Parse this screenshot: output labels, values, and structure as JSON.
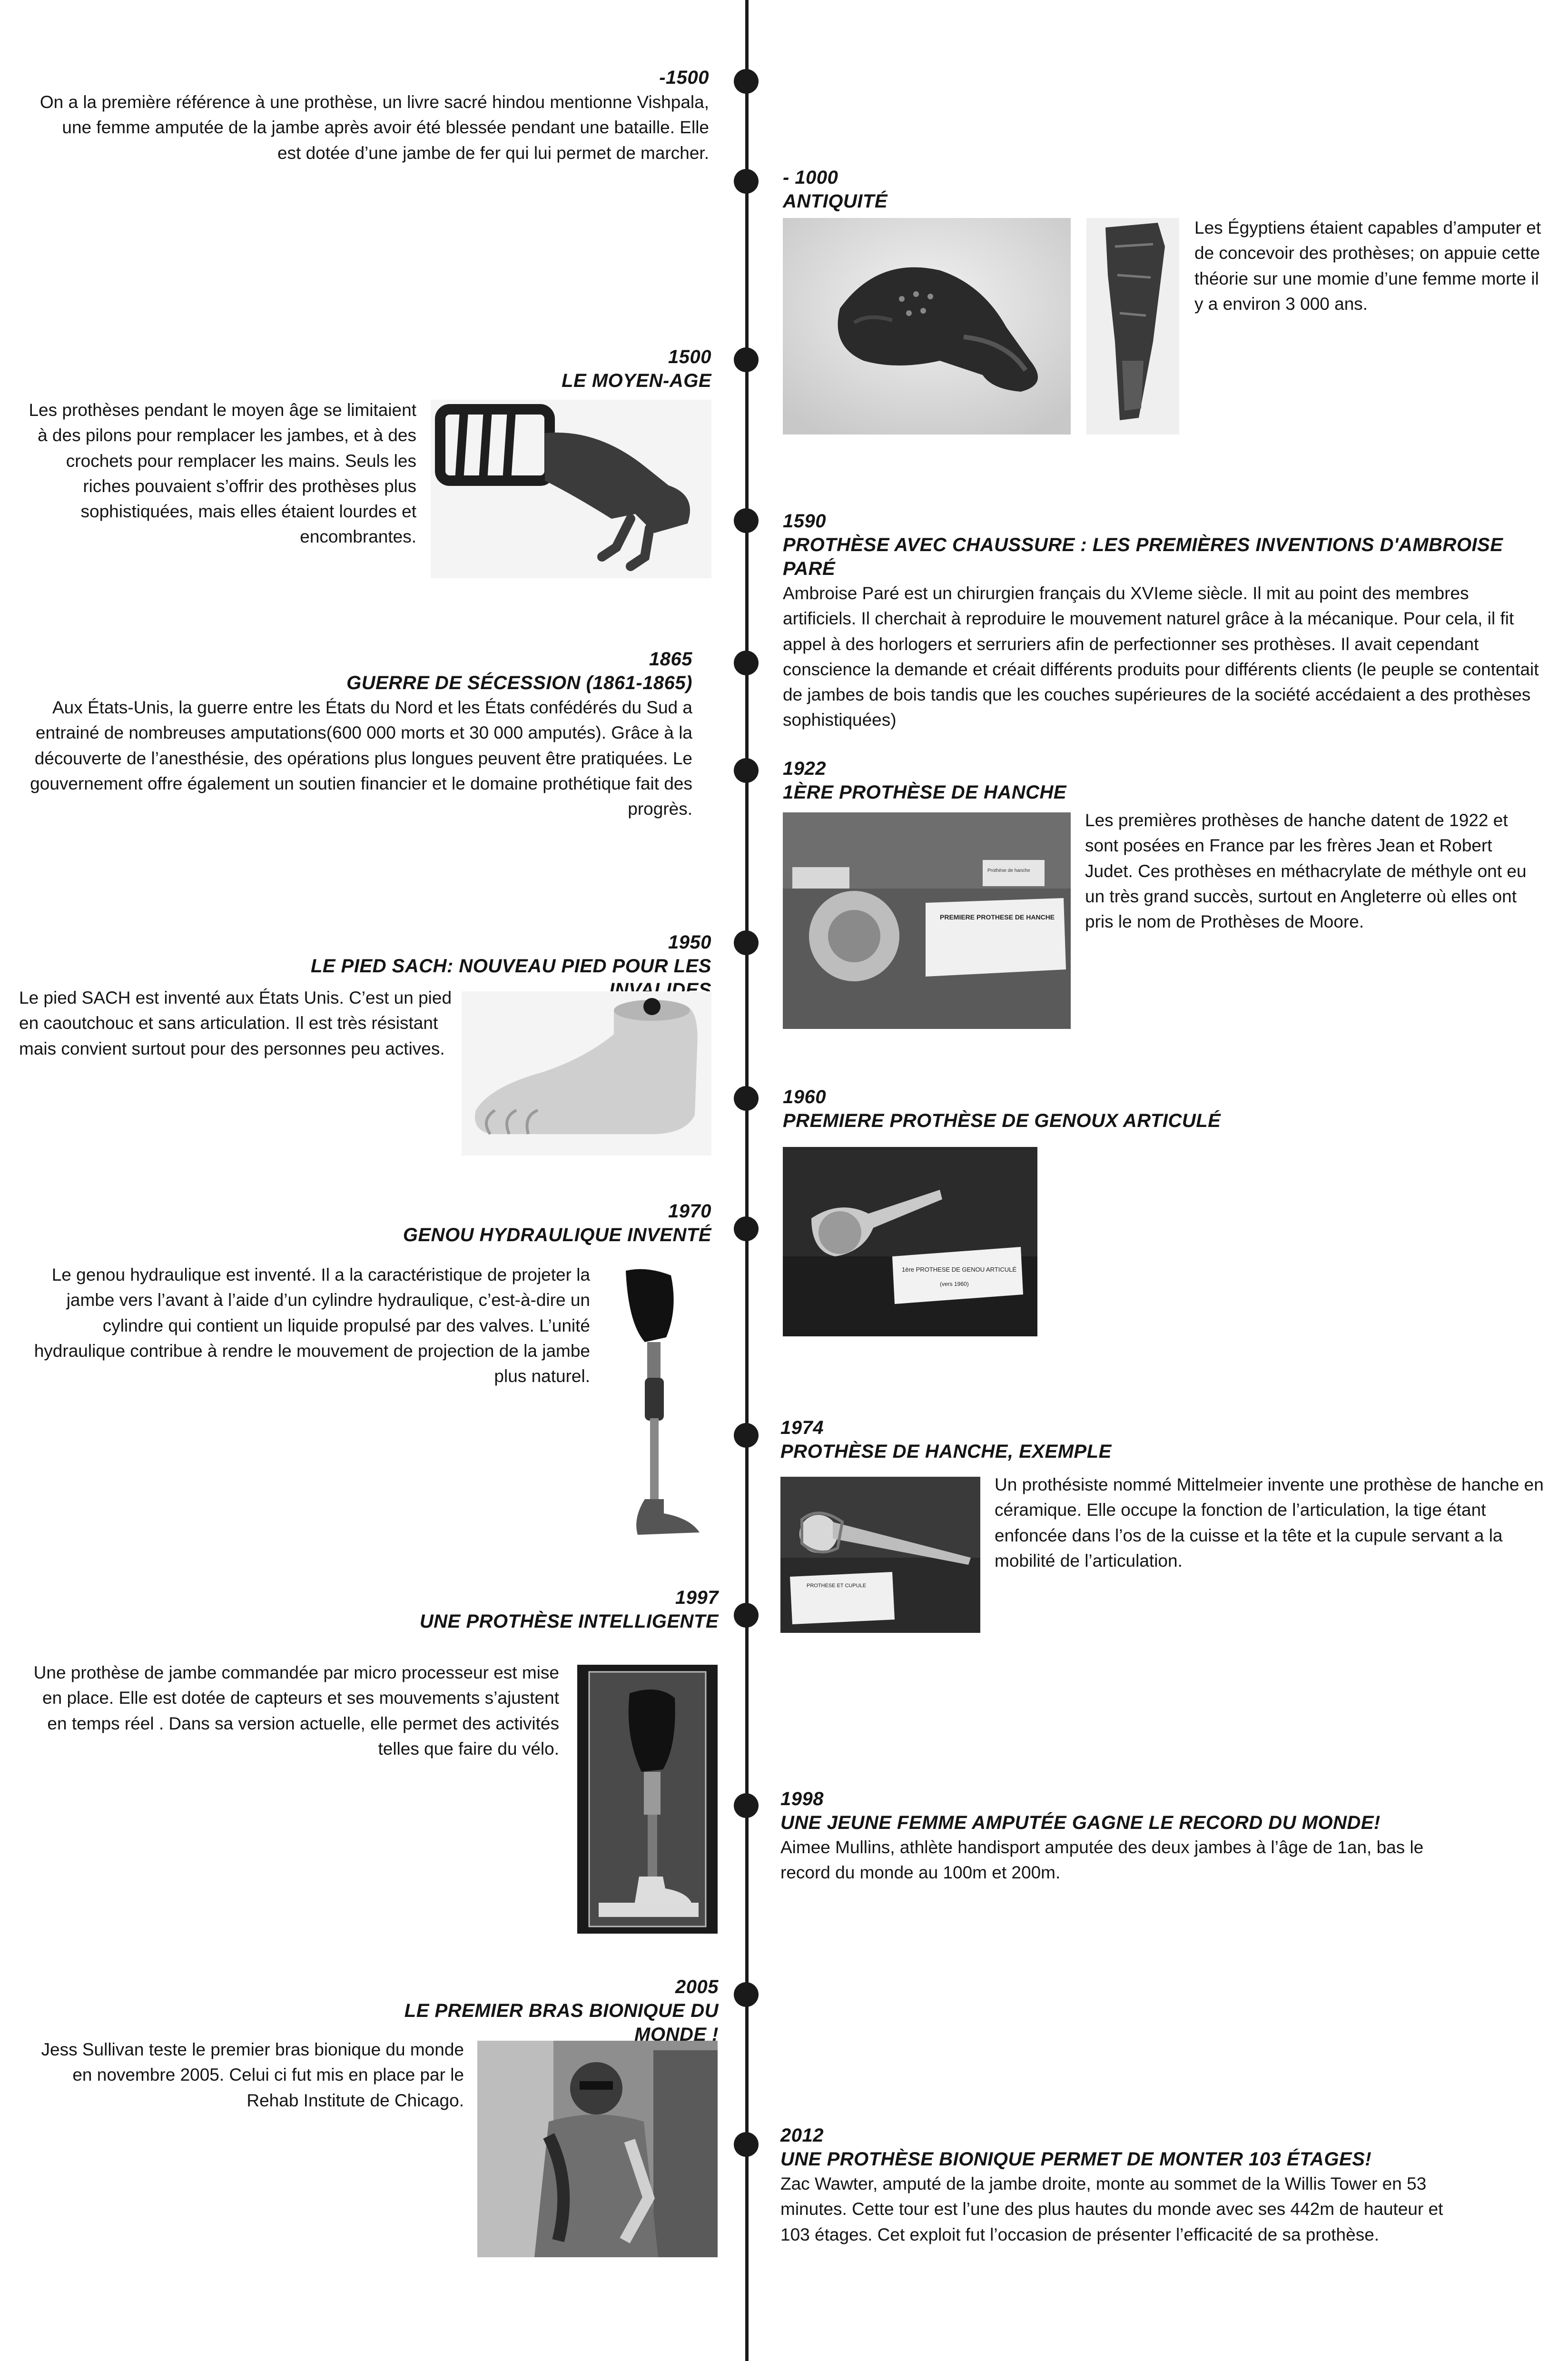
{
  "entries": [
    {
      "year": "-1500",
      "title": "",
      "text": "On a la première référence à une prothèse, un livre sacré hindou mentionne Vishpala, une femme amputée de la jambe après avoir été blessée pendant une bataille. Elle est dotée d’une jambe de fer qui lui permet de marcher."
    },
    {
      "year": "- 1000",
      "title": "ANTIQUITÉ",
      "text": "Les Égyptiens étaient capables d’amputer et de concevoir des prothèses; on appuie cette théorie sur une momie d’une femme morte il y a environ 3 000 ans."
    },
    {
      "year": "1500",
      "title": "LE MOYEN-AGE",
      "text": "Les prothèses pendant le moyen âge se limitaient à des pilons pour remplacer les jambes, et à des crochets pour remplacer les mains. Seuls les riches pouvaient s’offrir des prothèses plus sophistiquées, mais elles étaient lourdes et encombrantes."
    },
    {
      "year": "1590",
      "title": "PROTHÈSE AVEC CHAUSSURE : LES PREMIÈRES INVENTIONS D'AMBROISE PARÉ",
      "text": "Ambroise Paré est un chirurgien français du XVIeme siècle. Il mit au point des membres artificiels. Il cherchait à reproduire le mouvement naturel grâce à la mécanique. Pour cela, il fit appel à des horlogers et serruriers afin de perfectionner ses prothèses. Il avait cependant conscience la demande et créait différents produits pour différents clients (le peuple se contentait de jambes de bois tandis que les couches supérieures de la société accédaient a des prothèses sophistiquées)"
    },
    {
      "year": "1865",
      "title": "GUERRE DE SÉCESSION (1861-1865)",
      "text": "Aux États-Unis, la guerre entre les États du Nord et les États confédérés du Sud a entrainé de nombreuses amputations(600 000 morts et 30 000 amputés). Grâce à la découverte de l’anesthésie, des opérations plus longues peuvent être pratiquées. Le gouvernement offre également un soutien financier et le domaine prothétique fait des progrès."
    },
    {
      "year": "1922",
      "title": "1ÈRE PROTHÈSE DE HANCHE",
      "text": "Les premières prothèses de hanche datent de 1922 et sont posées en France par les frères Jean et Robert Judet. Ces prothèses en méthacrylate de méthyle ont eu un très grand succès, surtout en Angleterre où elles ont pris le nom de Prothèses de Moore."
    },
    {
      "year": "1950",
      "title": "LE PIED SACH: NOUVEAU PIED POUR LES INVALIDES",
      "text": "Le pied SACH est inventé aux États Unis. C’est un pied en caoutchouc et sans articulation. Il est très résistant mais convient surtout pour des personnes peu actives."
    },
    {
      "year": "1960",
      "title": "PREMIERE PROTHÈSE DE GENOUX ARTICULÉ",
      "text": ""
    },
    {
      "year": "1970",
      "title": "GENOU HYDRAULIQUE INVENTÉ",
      "text": "Le genou hydraulique est inventé. Il a la caractéristique de projeter la jambe vers l’avant à l’aide d’un cylindre hydraulique, c’est-à-dire un cylindre qui contient un liquide propulsé par des valves. L’unité hydraulique contribue à rendre le mouvement de projection de la jambe plus naturel."
    },
    {
      "year": "1974",
      "title": "PROTHÈSE DE HANCHE, EXEMPLE",
      "text": "Un prothésiste nommé Mittelmeier invente une prothèse de hanche en céramique. Elle occupe la fonction de l’articulation, la tige étant enfoncée dans l’os de la cuisse et la tête et la cupule servant a la mobilité de l’articulation."
    },
    {
      "year": "1997",
      "title": "UNE PROTHÈSE INTELLIGENTE",
      "text": "Une prothèse de jambe commandée par micro processeur est mise en place. Elle est dotée de capteurs et ses mouvements s’ajustent en temps réel . Dans sa version actuelle, elle permet des activités telles que faire du vélo."
    },
    {
      "year": "1998",
      "title": "UNE JEUNE FEMME AMPUTÉE GAGNE LE RECORD DU MONDE!",
      "text": "Aimee Mullins, athlète handisport amputée des deux jambes à l’âge de 1an, bas le record du monde au 100m et 200m."
    },
    {
      "year": "2005",
      "title": "LE PREMIER BRAS BIONIQUE DU MONDE !",
      "text": "Jess Sullivan teste le premier bras bionique du monde en novembre 2005. Celui ci fut mis en place par le Rehab Institute de Chicago."
    },
    {
      "year": "2012",
      "title": "UNE PROTHÈSE BIONIQUE PERMET DE MONTER 103 ÉTAGES!",
      "text": "Zac Wawter, amputé de la jambe droite, monte au sommet de la Willis Tower en 53 minutes. Cette tour est l’une des plus hautes du monde avec ses 442m de hauteur et 103 étages. Cet exploit fut l’occasion de présenter l’efficacité de sa prothèse."
    }
  ],
  "photo_labels": {
    "hip_card": "PREMIERE PROTHESE DE HANCHE",
    "hip_small": "Prothèse de hanche",
    "knee_card": "1ère PROTHESE DE GENOU ARTICULÉ",
    "knee_date": "(vers 1960)",
    "hip74_card": "PROTHESE ET CUPULE"
  }
}
